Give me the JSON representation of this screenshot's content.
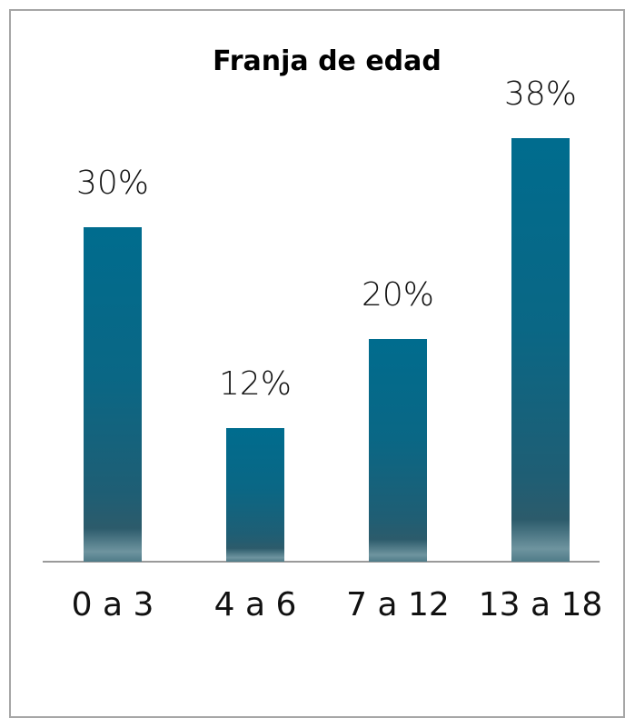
{
  "chart_data": {
    "type": "bar",
    "title": "Franja de edad",
    "categories": [
      "0 a 3",
      "4 a 6",
      "7 a 12",
      "13 a 18"
    ],
    "values": [
      30,
      12,
      20,
      38
    ],
    "value_labels": [
      "30%",
      "12%",
      "20%",
      "38%"
    ]
  }
}
